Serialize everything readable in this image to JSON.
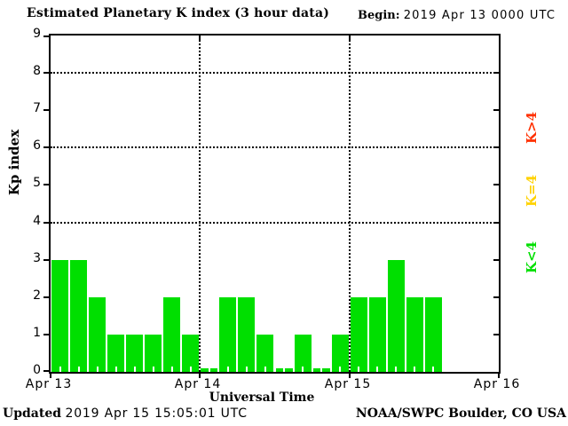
{
  "title": "Estimated Planetary K index (3 hour data)",
  "begin": {
    "label": "Begin:",
    "value": "2019 Apr 13 0000 UTC"
  },
  "y_axis": {
    "label": "Kp index",
    "ticks": [
      0,
      1,
      2,
      3,
      4,
      5,
      6,
      7,
      8,
      9
    ]
  },
  "x_axis": {
    "label": "Universal Time",
    "day_labels": [
      "Apr 13",
      "Apr 14",
      "Apr 15",
      "Apr 16"
    ]
  },
  "legend": [
    {
      "label": "K>4",
      "color": "#FF3000"
    },
    {
      "label": "K=4",
      "color": "#FFD200"
    },
    {
      "label": "K<4",
      "color": "#00DF00"
    }
  ],
  "footer": {
    "updated_label": "Updated",
    "updated_value": "2019 Apr 15 15:05:01 UTC",
    "source": "NOAA/SWPC Boulder, CO USA"
  },
  "chart_data": {
    "type": "bar",
    "title": "Estimated Planetary K index (3 hour data)",
    "begin": "2019 Apr 13 0000 UTC",
    "xlabel": "Universal Time",
    "ylabel": "Kp index",
    "ylim": [
      0,
      9
    ],
    "y_gridlines": [
      4,
      6,
      8
    ],
    "grid": "dotted horizontal at 4/6/8, dotted vertical at day boundaries",
    "legend_position": "right, rotated",
    "interval_hours": 3,
    "days": [
      "Apr 13",
      "Apr 14",
      "Apr 15"
    ],
    "slots_per_day": 8,
    "values": [
      3,
      3,
      2,
      1,
      1,
      1,
      2,
      1,
      0,
      2,
      2,
      1,
      0,
      1,
      0,
      1,
      2,
      2,
      3,
      2,
      2
    ],
    "colors": {
      "below_4": "#00DF00",
      "equal_4": "#FFD200",
      "above_4": "#FF3000"
    }
  }
}
